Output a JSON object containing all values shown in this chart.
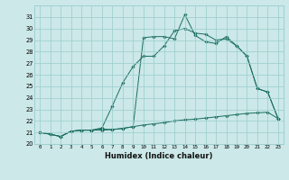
{
  "xlabel": "Humidex (Indice chaleur)",
  "bg_color": "#cce8e8",
  "grid_color": "#99cccc",
  "line_color": "#1a6e5e",
  "xlim": [
    -0.5,
    23.5
  ],
  "ylim": [
    20,
    32
  ],
  "xticks": [
    0,
    1,
    2,
    3,
    4,
    5,
    6,
    7,
    8,
    9,
    10,
    11,
    12,
    13,
    14,
    15,
    16,
    17,
    18,
    19,
    20,
    21,
    22,
    23
  ],
  "yticks": [
    20,
    21,
    22,
    23,
    24,
    25,
    26,
    27,
    28,
    29,
    30,
    31
  ],
  "line1_x": [
    0,
    1,
    2,
    3,
    4,
    5,
    6,
    7,
    8,
    9,
    10,
    11,
    12,
    13,
    14,
    15,
    16,
    17,
    18,
    19,
    20,
    21,
    22,
    23
  ],
  "line1_y": [
    21.0,
    20.85,
    20.65,
    21.1,
    21.2,
    21.2,
    21.2,
    21.25,
    21.35,
    21.5,
    21.65,
    21.75,
    21.85,
    22.0,
    22.1,
    22.15,
    22.25,
    22.35,
    22.45,
    22.55,
    22.65,
    22.7,
    22.75,
    22.2
  ],
  "line2_x": [
    0,
    1,
    2,
    3,
    4,
    5,
    6,
    7,
    8,
    9,
    10,
    11,
    12,
    13,
    14,
    15,
    16,
    17,
    18,
    19,
    20,
    21,
    22,
    23
  ],
  "line2_y": [
    21.0,
    20.85,
    20.65,
    21.1,
    21.2,
    21.2,
    21.4,
    23.3,
    25.3,
    26.7,
    27.6,
    27.6,
    28.5,
    29.8,
    30.0,
    29.6,
    29.5,
    29.0,
    29.1,
    28.5,
    27.6,
    24.8,
    24.5,
    22.2
  ],
  "line3_x": [
    0,
    1,
    2,
    3,
    4,
    5,
    6,
    7,
    8,
    9,
    10,
    11,
    12,
    13,
    14,
    15,
    16,
    17,
    18,
    19,
    20,
    21,
    22,
    23
  ],
  "line3_y": [
    21.0,
    20.85,
    20.65,
    21.1,
    21.2,
    21.2,
    21.3,
    21.25,
    21.35,
    21.5,
    29.2,
    29.3,
    29.3,
    29.1,
    31.2,
    29.4,
    28.85,
    28.7,
    29.3,
    28.5,
    27.6,
    24.8,
    24.5,
    22.2
  ]
}
